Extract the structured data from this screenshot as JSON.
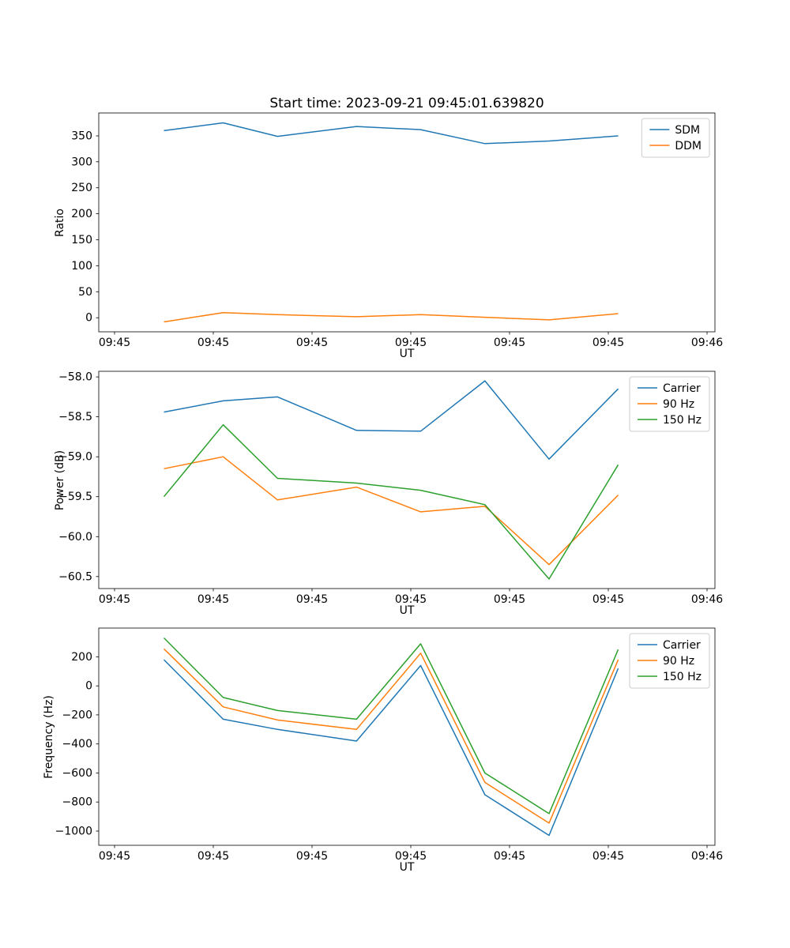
{
  "page": {
    "background": "#ffffff"
  },
  "chart_data": [
    {
      "type": "line",
      "name": "ratio",
      "title": "Start time: 2023-09-21 09:45:01.639820",
      "xlabel": "UT",
      "ylabel": "Ratio",
      "x": [
        5,
        11,
        16.5,
        24.5,
        31,
        37.5,
        44,
        51
      ],
      "series": [
        {
          "name": "SDM",
          "color": "#1f77b4",
          "values": [
            360,
            375,
            349,
            368,
            362,
            335,
            340,
            350
          ]
        },
        {
          "name": "DDM",
          "color": "#ff7f0e",
          "values": [
            -8,
            10,
            6,
            2,
            6,
            1,
            -4,
            8
          ]
        }
      ],
      "xlim": [
        -1.6,
        60.8
      ],
      "ylim": [
        -27,
        394
      ],
      "xticks": {
        "values": [
          0,
          10,
          20,
          30,
          40,
          50,
          60
        ],
        "labels": [
          "09:45",
          "09:45",
          "09:45",
          "09:45",
          "09:45",
          "09:45",
          "09:46"
        ]
      },
      "yticks": {
        "values": [
          0,
          50,
          100,
          150,
          200,
          250,
          300,
          350
        ],
        "labels": [
          "0",
          "50",
          "100",
          "150",
          "200",
          "250",
          "300",
          "350"
        ]
      },
      "grid": false,
      "legend": {
        "position": "upper right"
      }
    },
    {
      "type": "line",
      "name": "power",
      "title": "",
      "xlabel": "UT",
      "ylabel": "Power (dB)",
      "x": [
        5,
        11,
        16.5,
        24.5,
        31,
        37.5,
        44,
        51
      ],
      "series": [
        {
          "name": "Carrier",
          "color": "#1f77b4",
          "values": [
            -58.44,
            -58.3,
            -58.25,
            -58.67,
            -58.68,
            -58.05,
            -59.03,
            -58.15
          ]
        },
        {
          "name": "90 Hz",
          "color": "#ff7f0e",
          "values": [
            -59.15,
            -59.0,
            -59.54,
            -59.38,
            -59.69,
            -59.62,
            -60.35,
            -59.48
          ]
        },
        {
          "name": "150 Hz",
          "color": "#2ca02c",
          "values": [
            -59.5,
            -58.6,
            -59.27,
            -59.33,
            -59.42,
            -59.6,
            -60.53,
            -59.1
          ]
        }
      ],
      "xlim": [
        -1.6,
        60.8
      ],
      "ylim": [
        -60.65,
        -57.93
      ],
      "xticks": {
        "values": [
          0,
          10,
          20,
          30,
          40,
          50,
          60
        ],
        "labels": [
          "09:45",
          "09:45",
          "09:45",
          "09:45",
          "09:45",
          "09:45",
          "09:46"
        ]
      },
      "yticks": {
        "values": [
          -58.0,
          -58.5,
          -59.0,
          -59.5,
          -60.0,
          -60.5
        ],
        "labels": [
          "−58.0",
          "−58.5",
          "−59.0",
          "−59.5",
          "−60.0",
          "−60.5"
        ]
      },
      "grid": false,
      "legend": {
        "position": "upper right"
      }
    },
    {
      "type": "line",
      "name": "frequency",
      "title": "",
      "xlabel": "UT",
      "ylabel": "Frequency (Hz)",
      "x": [
        5,
        11,
        16.5,
        24.5,
        31,
        37.5,
        44,
        51
      ],
      "series": [
        {
          "name": "Carrier",
          "color": "#1f77b4",
          "values": [
            180,
            -230,
            -300,
            -380,
            140,
            -750,
            -1030,
            120
          ]
        },
        {
          "name": "90 Hz",
          "color": "#ff7f0e",
          "values": [
            255,
            -145,
            -235,
            -300,
            225,
            -665,
            -945,
            180
          ]
        },
        {
          "name": "150 Hz",
          "color": "#2ca02c",
          "values": [
            330,
            -80,
            -170,
            -230,
            290,
            -600,
            -880,
            250
          ]
        }
      ],
      "xlim": [
        -1.6,
        60.8
      ],
      "ylim": [
        -1098,
        398
      ],
      "xticks": {
        "values": [
          0,
          10,
          20,
          30,
          40,
          50,
          60
        ],
        "labels": [
          "09:45",
          "09:45",
          "09:45",
          "09:45",
          "09:45",
          "09:45",
          "09:46"
        ]
      },
      "yticks": {
        "values": [
          200,
          0,
          -200,
          -400,
          -600,
          -800,
          -1000
        ],
        "labels": [
          "200",
          "0",
          "−200",
          "−400",
          "−600",
          "−800",
          "−1000"
        ]
      },
      "grid": false,
      "legend": {
        "position": "upper right"
      }
    }
  ]
}
